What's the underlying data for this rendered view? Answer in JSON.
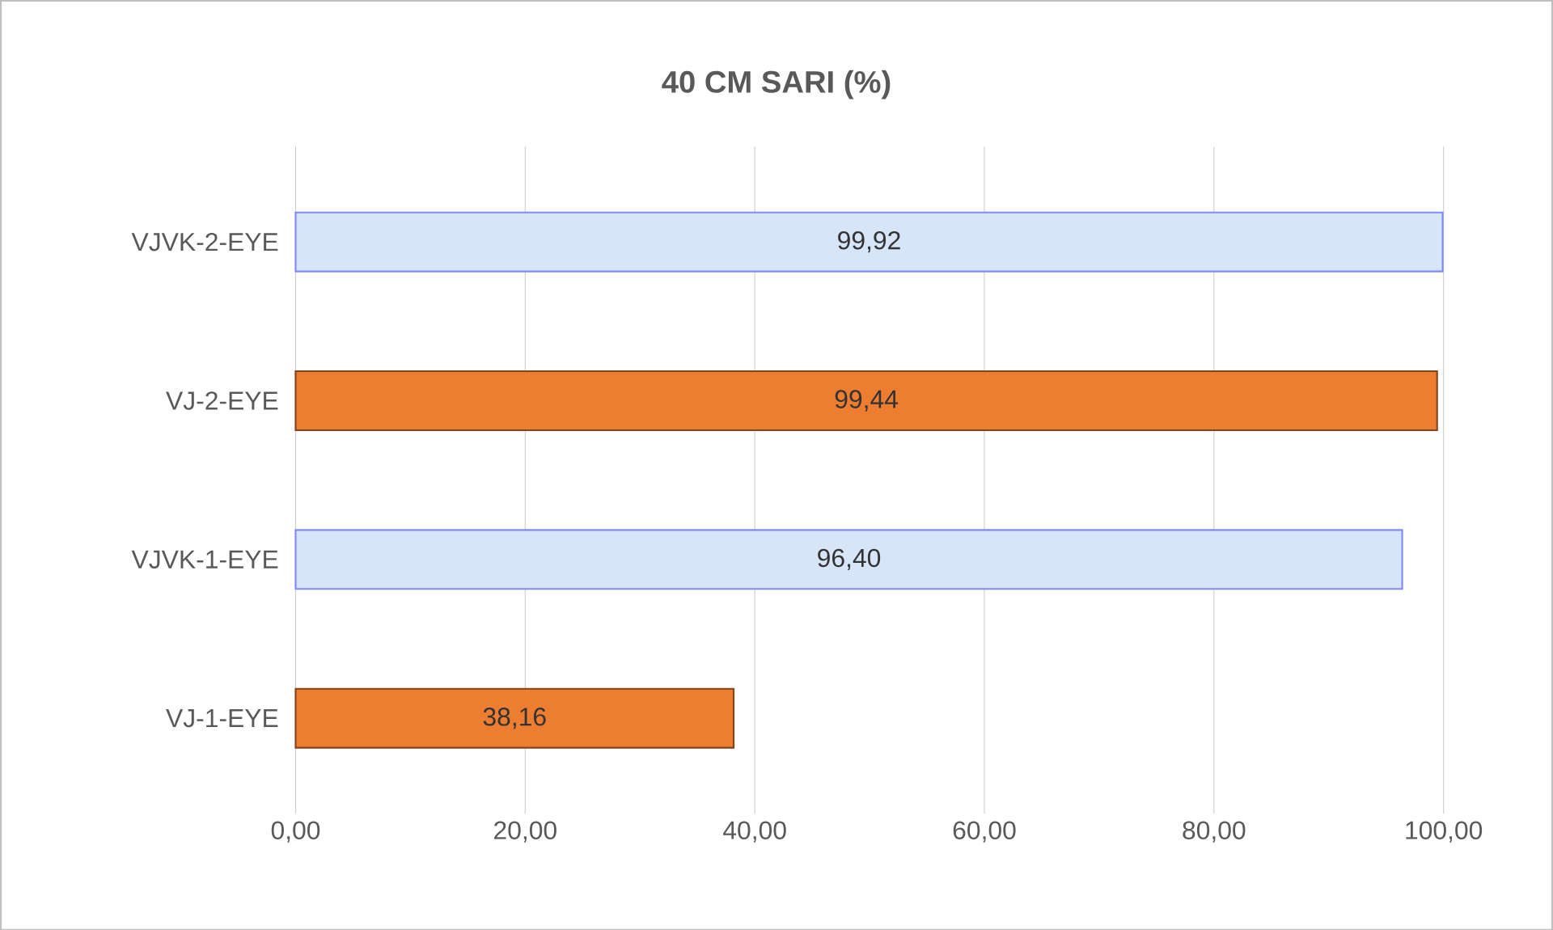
{
  "chart_data": {
    "type": "bar",
    "orientation": "horizontal",
    "title": "40 CM SARI (%)",
    "categories": [
      "VJVK-2-EYE",
      "VJ-2-EYE",
      "VJVK-1-EYE",
      "VJ-1-EYE"
    ],
    "values": [
      99.92,
      99.44,
      96.4,
      38.16
    ],
    "value_labels": [
      "99,92",
      "99,44",
      "96,40",
      "38,16"
    ],
    "colors": [
      "#d6e6f8",
      "#ed7d31",
      "#d6e6f8",
      "#ed7d31"
    ],
    "xlim": [
      0,
      100
    ],
    "xticks": [
      {
        "value": 0,
        "label": "0,00"
      },
      {
        "value": 20,
        "label": "20,00"
      },
      {
        "value": 40,
        "label": "40,00"
      },
      {
        "value": 60,
        "label": "60,00"
      },
      {
        "value": 80,
        "label": "80,00"
      },
      {
        "value": 100,
        "label": "100,00"
      }
    ],
    "grid": "x"
  }
}
